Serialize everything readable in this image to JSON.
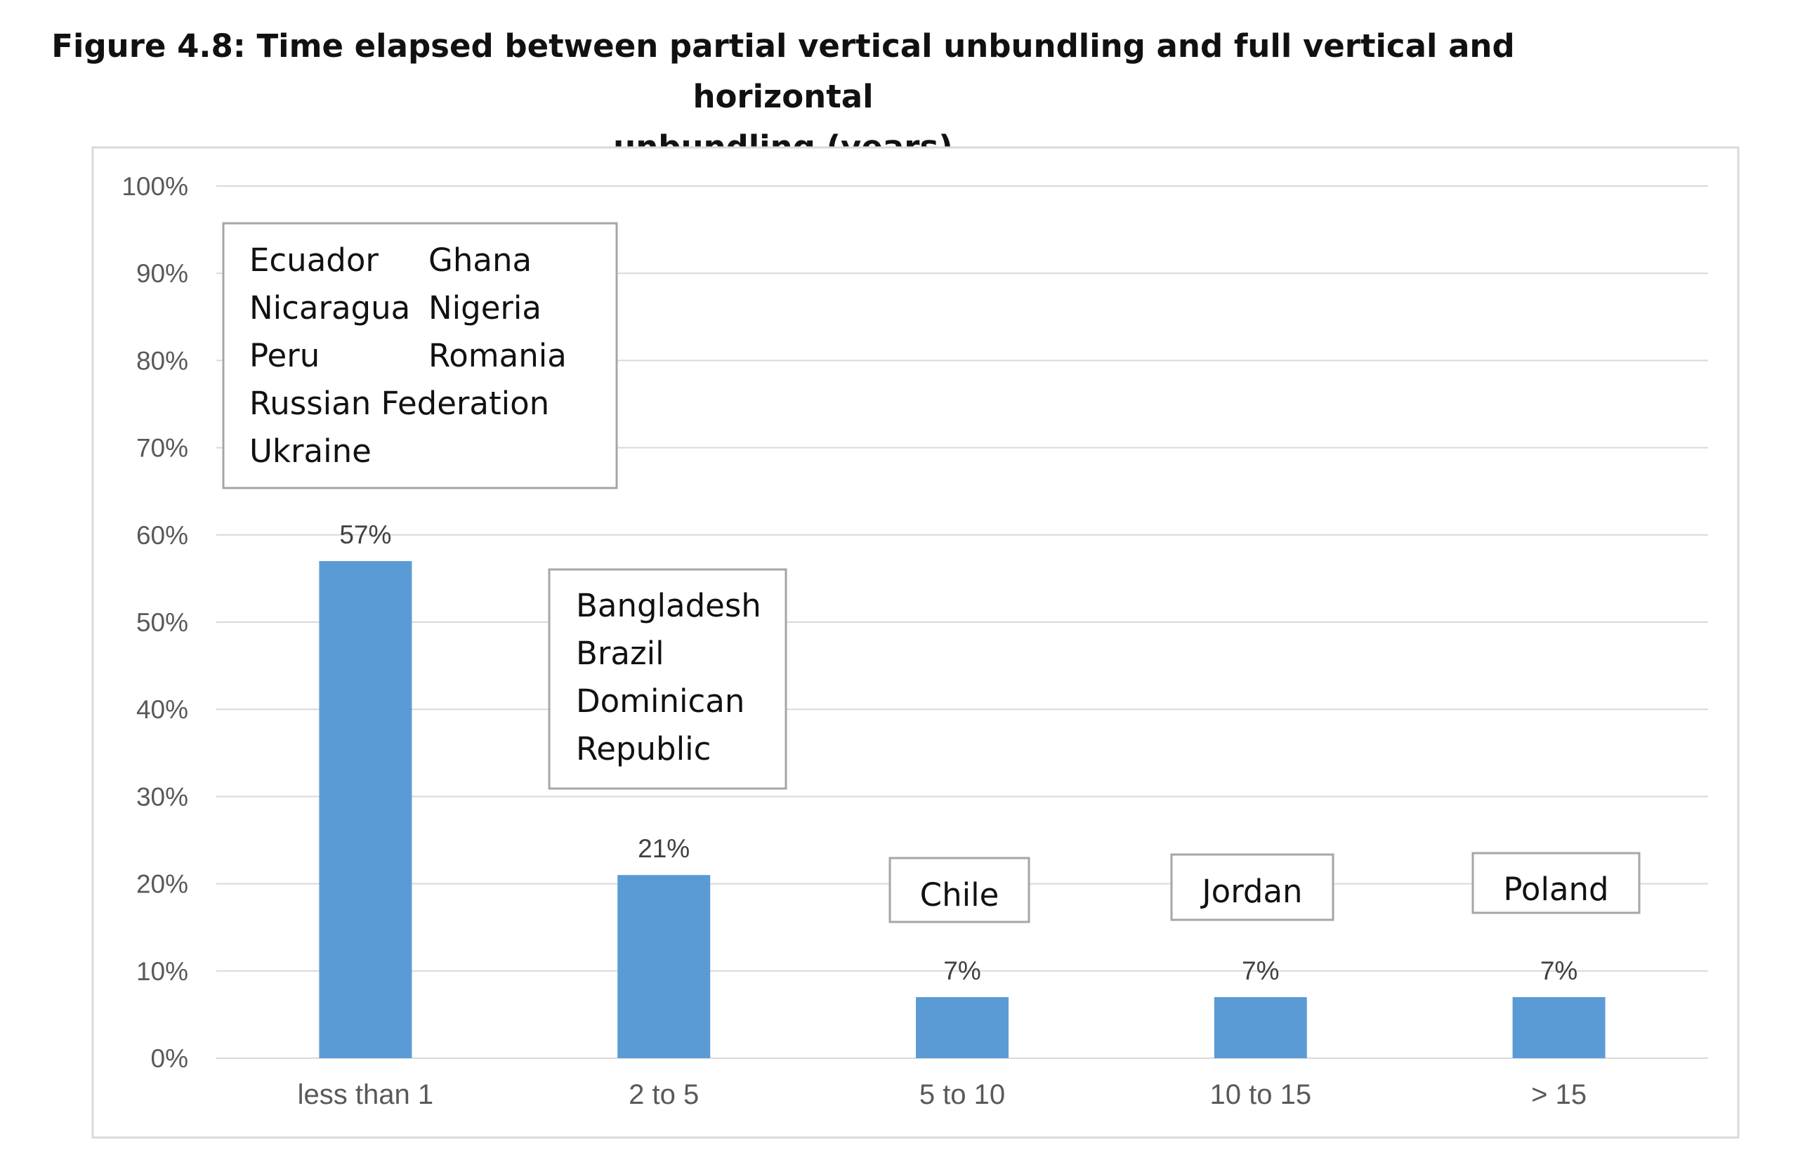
{
  "title": {
    "line1": "Figure 4.8: Time elapsed between partial vertical unbundling and full vertical and horizontal",
    "line2": "unbundling (years)"
  },
  "chart_data": {
    "type": "bar",
    "categories": [
      "less than 1",
      "2 to 5",
      "5 to 10",
      "10 to 15",
      "> 15"
    ],
    "values": [
      57,
      21,
      7,
      7,
      7
    ],
    "data_labels": [
      "57%",
      "21%",
      "7%",
      "7%",
      "7%"
    ],
    "ylim": [
      0,
      100
    ],
    "yticks": [
      0,
      10,
      20,
      30,
      40,
      50,
      60,
      70,
      80,
      90,
      100
    ],
    "ytick_labels": [
      "0%",
      "10%",
      "20%",
      "30%",
      "40%",
      "50%",
      "60%",
      "70%",
      "80%",
      "90%",
      "100%"
    ],
    "grid": true,
    "bar_color": "#5b9bd5",
    "grid_color": "#d9d9d9",
    "annotations": [
      {
        "category": "less than 1",
        "columns": [
          [
            "Ecuador",
            "Nicaragua",
            "Peru",
            "Russian Federation",
            "Ukraine"
          ],
          [
            "Ghana",
            "Nigeria",
            "Romania"
          ]
        ]
      },
      {
        "category": "2 to 5",
        "columns": [
          [
            "Bangladesh",
            "Brazil",
            "Dominican",
            "Republic"
          ]
        ]
      },
      {
        "category": "5 to 10",
        "columns": [
          [
            "Chile"
          ]
        ]
      },
      {
        "category": "10 to 15",
        "columns": [
          [
            "Jordan"
          ]
        ]
      },
      {
        "category": "> 15",
        "columns": [
          [
            "Poland"
          ]
        ]
      }
    ]
  }
}
